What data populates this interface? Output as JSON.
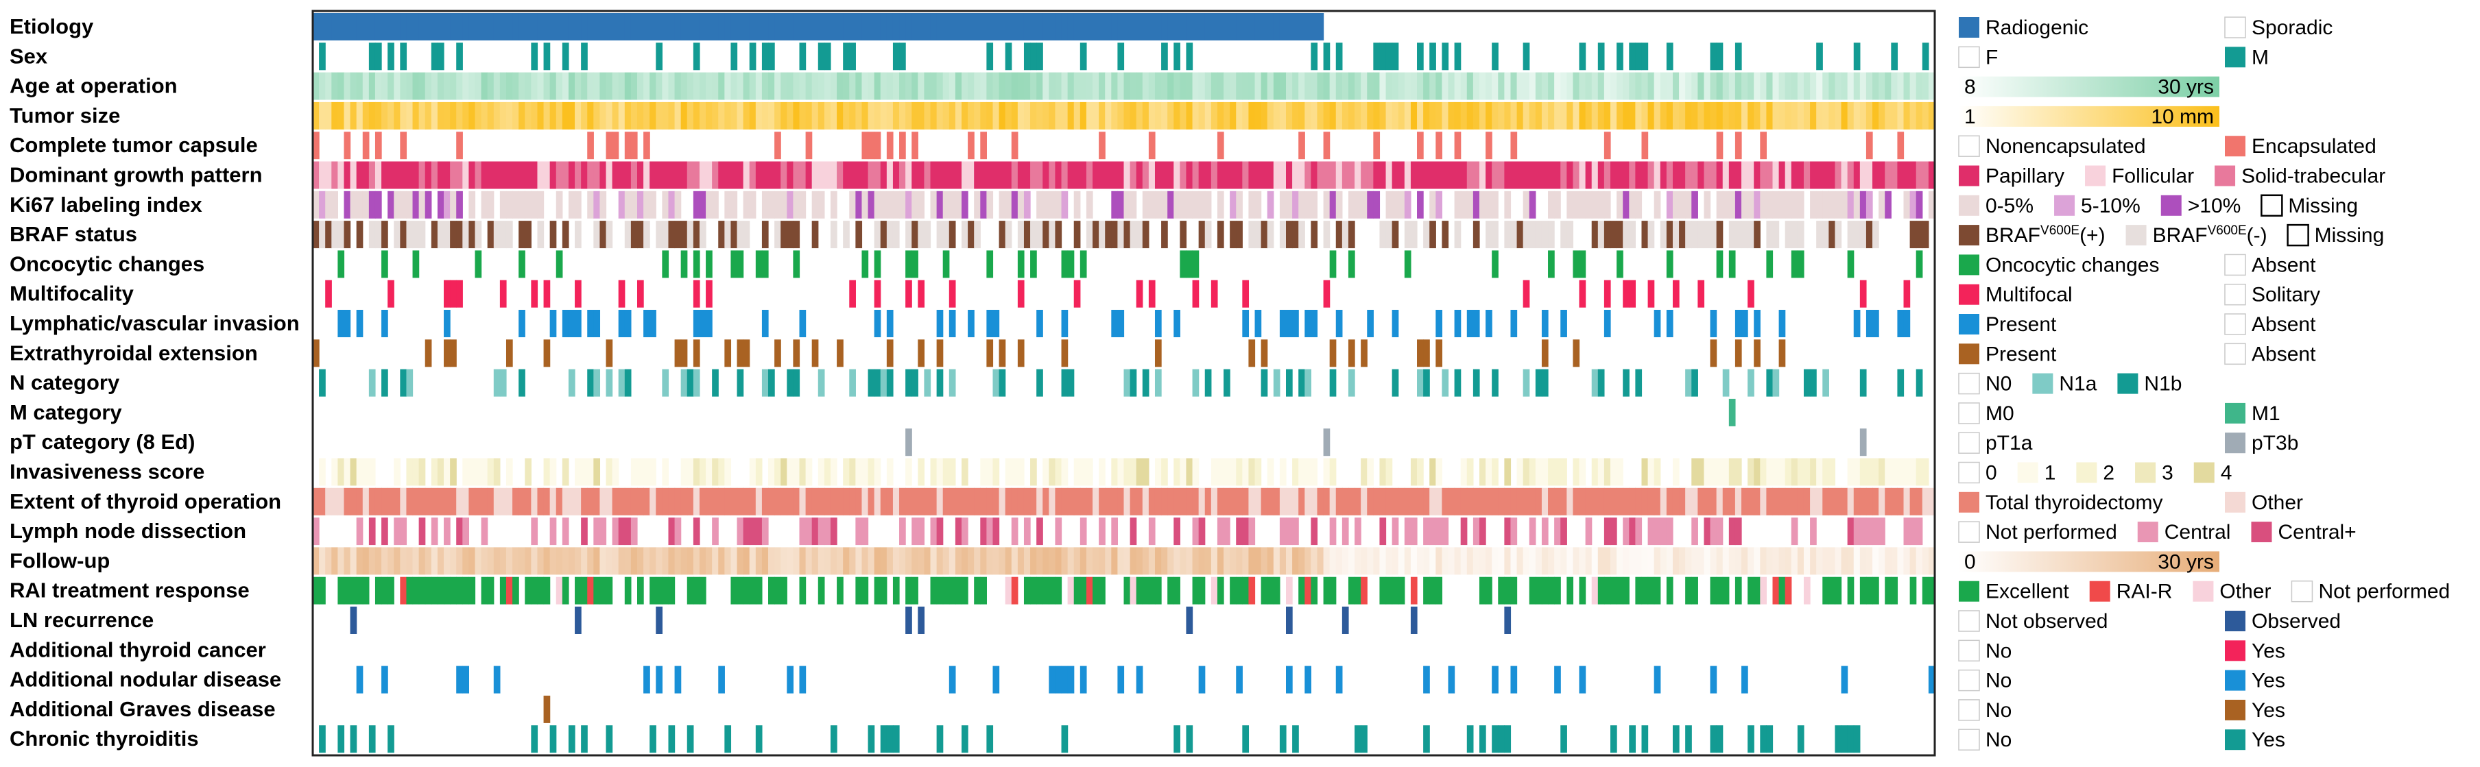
{
  "chart_data": {
    "type": "heatmap",
    "title": "",
    "n_patients": 260,
    "n_radiogenic": 162,
    "tracks": [
      {
        "key": "etiology",
        "label": "Etiology"
      },
      {
        "key": "sex",
        "label": "Sex"
      },
      {
        "key": "age",
        "label": "Age at operation"
      },
      {
        "key": "tumor_size",
        "label": "Tumor size"
      },
      {
        "key": "capsule",
        "label": "Complete tumor capsule"
      },
      {
        "key": "growth",
        "label": "Dominant growth pattern"
      },
      {
        "key": "ki67",
        "label": "Ki67 labeling index"
      },
      {
        "key": "braf",
        "label": "BRAF status"
      },
      {
        "key": "oncocytic",
        "label": "Oncocytic changes"
      },
      {
        "key": "multifocality",
        "label": "Multifocality"
      },
      {
        "key": "lvi",
        "label": "Lymphatic/vascular invasion"
      },
      {
        "key": "ete",
        "label": "Extrathyroidal extension"
      },
      {
        "key": "n_cat",
        "label": "N category"
      },
      {
        "key": "m_cat",
        "label": "M category"
      },
      {
        "key": "pt_cat",
        "label": "pT category (8 Ed)"
      },
      {
        "key": "inv_score",
        "label": "Invasiveness score"
      },
      {
        "key": "extent",
        "label": "Extent of thyroid operation"
      },
      {
        "key": "lnd",
        "label": "Lymph node dissection"
      },
      {
        "key": "followup",
        "label": "Follow-up"
      },
      {
        "key": "rai",
        "label": "RAI treatment response"
      },
      {
        "key": "ln_rec",
        "label": "LN recurrence"
      },
      {
        "key": "add_cancer",
        "label": "Additional thyroid cancer"
      },
      {
        "key": "add_nodular",
        "label": "Additional nodular disease"
      },
      {
        "key": "add_graves",
        "label": "Additional Graves disease"
      },
      {
        "key": "thyroiditis",
        "label": "Chronic thyroiditis"
      }
    ],
    "legend": [
      [
        {
          "label": "Radiogenic",
          "color": "#2e75b6"
        },
        {
          "label": "Sporadic",
          "color": "#ffffff"
        }
      ],
      [
        {
          "label": "F",
          "color": "#ffffff"
        },
        {
          "label": "M",
          "color": "#139b93"
        }
      ],
      [
        {
          "gradient": [
            "#ffffff",
            "#7ccfa6"
          ],
          "min": "8",
          "max": "30 yrs"
        }
      ],
      [
        {
          "gradient": [
            "#ffffff",
            "#fbbf1b"
          ],
          "min": "1",
          "max": "10 mm"
        }
      ],
      [
        {
          "label": "Nonencapsulated",
          "color": "#ffffff"
        },
        {
          "label": "Encapsulated",
          "color": "#f1756d"
        }
      ],
      [
        {
          "label": "Papillary",
          "color": "#e02e6a"
        },
        {
          "label": "Follicular",
          "color": "#f8d2dc"
        },
        {
          "label": "Solid-trabecular",
          "color": "#e8799c"
        }
      ],
      [
        {
          "label": "0-5%",
          "color": "#ead9d9"
        },
        {
          "label": "5-10%",
          "color": "#dca3d8"
        },
        {
          "label": ">10%",
          "color": "#ad4fbd"
        },
        {
          "label": "Missing",
          "color": "#ffffff",
          "boxed": true
        }
      ],
      [
        {
          "label": "BRAF",
          "sup": "V600E",
          "suffix": "(+)",
          "color": "#7d4a32"
        },
        {
          "label": "BRAF",
          "sup": "V600E",
          "suffix": "(-)",
          "color": "#e7dfdd"
        },
        {
          "label": "Missing",
          "color": "#ffffff",
          "boxed": true
        }
      ],
      [
        {
          "label": "Oncocytic changes",
          "color": "#1aa84c"
        },
        {
          "label": "Absent",
          "color": "#ffffff"
        }
      ],
      [
        {
          "label": "Multifocal",
          "color": "#f3235a"
        },
        {
          "label": "Solitary",
          "color": "#ffffff"
        }
      ],
      [
        {
          "label": "Present",
          "color": "#1990d7"
        },
        {
          "label": "Absent",
          "color": "#ffffff"
        }
      ],
      [
        {
          "label": "Present",
          "color": "#a96222"
        },
        {
          "label": "Absent",
          "color": "#ffffff"
        }
      ],
      [
        {
          "label": "N0",
          "color": "#ffffff"
        },
        {
          "label": "N1a",
          "color": "#7fcbc6"
        },
        {
          "label": "N1b",
          "color": "#139b93"
        }
      ],
      [
        {
          "label": "M0",
          "color": "#ffffff"
        },
        {
          "label": "M1",
          "color": "#3fb68a"
        }
      ],
      [
        {
          "label": "pT1a",
          "color": "#ffffff"
        },
        {
          "label": "pT3b",
          "color": "#a0abb5"
        }
      ],
      [
        {
          "label": "0",
          "color": "#ffffff"
        },
        {
          "label": "1",
          "color": "#fdfaea"
        },
        {
          "label": "2",
          "color": "#f7f3d2"
        },
        {
          "label": "3",
          "color": "#efe9bd"
        },
        {
          "label": "4",
          "color": "#e3da9f"
        }
      ],
      [
        {
          "label": "Total thyroidectomy",
          "color": "#ea8374"
        },
        {
          "label": "Other",
          "color": "#f4d9d4"
        }
      ],
      [
        {
          "label": "Not performed",
          "color": "#ffffff"
        },
        {
          "label": "Central",
          "color": "#e996b4"
        },
        {
          "label": "Central+",
          "color": "#d94f7e"
        }
      ],
      [
        {
          "gradient": [
            "#ffffff",
            "#e7ad78"
          ],
          "min": "0",
          "max": "30 yrs"
        }
      ],
      [
        {
          "label": "Excellent",
          "color": "#1aa84c"
        },
        {
          "label": "RAI-R",
          "color": "#f04a4a"
        },
        {
          "label": "Other",
          "color": "#f8d2dc"
        },
        {
          "label": "Not performed",
          "color": "#ffffff"
        }
      ],
      [
        {
          "label": "Not observed",
          "color": "#ffffff"
        },
        {
          "label": "Observed",
          "color": "#2d5a9a"
        }
      ],
      [
        {
          "label": "No",
          "color": "#ffffff"
        },
        {
          "label": "Yes",
          "color": "#f3235a"
        }
      ],
      [
        {
          "label": "No",
          "color": "#ffffff"
        },
        {
          "label": "Yes",
          "color": "#1990d7"
        }
      ],
      [
        {
          "label": "No",
          "color": "#ffffff"
        },
        {
          "label": "Yes",
          "color": "#a96222"
        }
      ],
      [
        {
          "label": "No",
          "color": "#ffffff"
        },
        {
          "label": "Yes",
          "color": "#139b93"
        }
      ]
    ]
  }
}
